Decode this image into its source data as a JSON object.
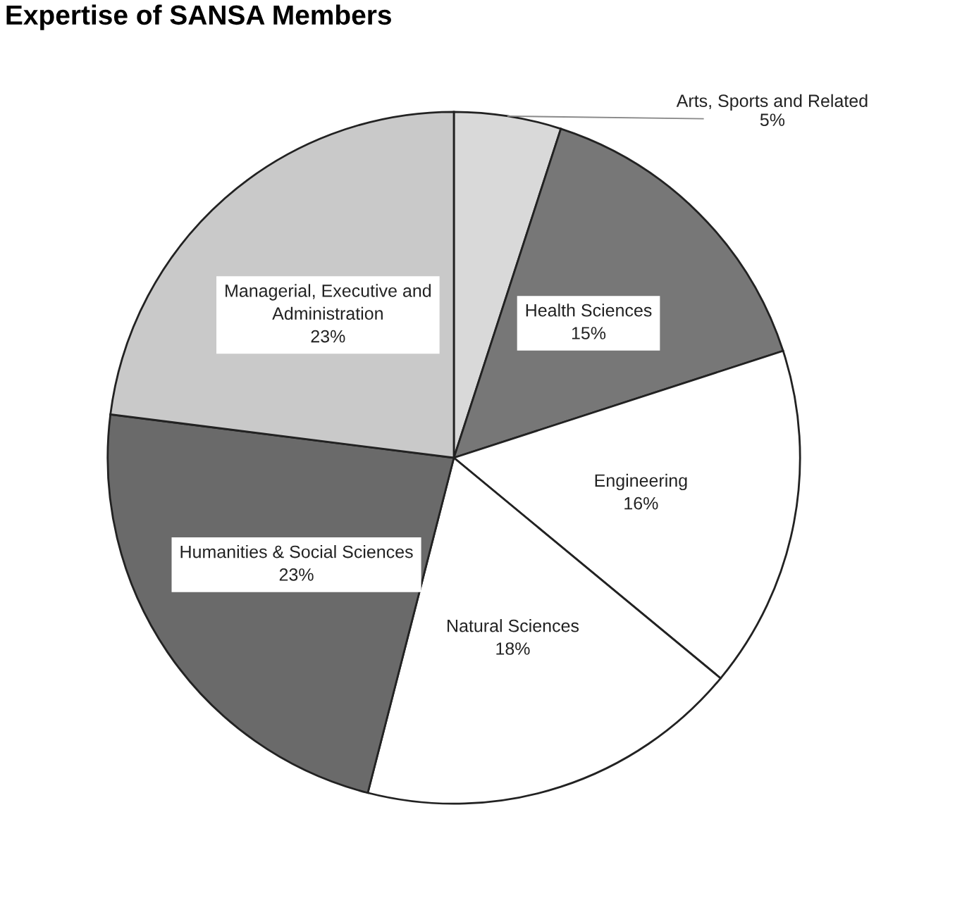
{
  "chart_data": {
    "type": "pie",
    "title": "Expertise of SANSA Members",
    "categories": [
      "Arts, Sports and Related",
      "Health Sciences",
      "Engineering",
      "Natural Sciences",
      "Humanities & Social Sciences",
      "Managerial, Executive and\nAdministration"
    ],
    "values": [
      5,
      15,
      16,
      18,
      23,
      23
    ],
    "value_labels": [
      "5%",
      "15%",
      "16%",
      "18%",
      "23%",
      "23%"
    ],
    "colors": [
      "#d9d9d9",
      "#777777",
      "#ffffff",
      "#ffffff",
      "#6a6a6a",
      "#c9c9c9"
    ],
    "legend": false
  }
}
